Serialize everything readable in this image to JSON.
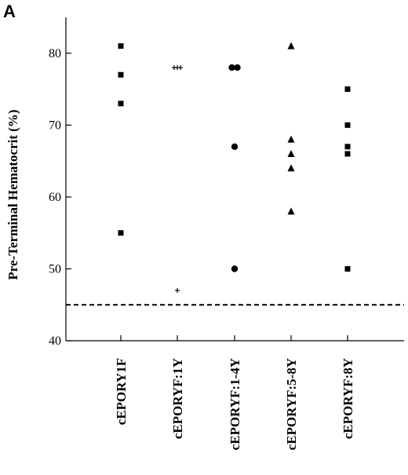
{
  "panel_label": "A",
  "chart_data": {
    "type": "scatter",
    "title": "",
    "xlabel": "",
    "ylabel": "Pre-Terminal Hematocrit (%)",
    "ylim": [
      40,
      85
    ],
    "yticks": [
      40,
      50,
      60,
      70,
      80
    ],
    "grid": false,
    "reference_line": {
      "y": 45,
      "style": "dashed"
    },
    "categories": [
      "cEPORY1F",
      "cEPORYF:1Y",
      "cEPORYF:1-4Y",
      "cEPORYF:5-8Y",
      "cEPORYF:8Y"
    ],
    "series": [
      {
        "category": "cEPORY1F",
        "marker": "square",
        "values": [
          81,
          77,
          73,
          55
        ]
      },
      {
        "category": "cEPORYF:1Y",
        "marker": "plus",
        "values": [
          78,
          78,
          78,
          47
        ]
      },
      {
        "category": "cEPORYF:1-4Y",
        "marker": "circle",
        "values": [
          78,
          78,
          67,
          50
        ]
      },
      {
        "category": "cEPORYF:5-8Y",
        "marker": "triangle",
        "values": [
          81,
          68,
          66,
          64,
          58
        ]
      },
      {
        "category": "cEPORYF:8Y",
        "marker": "square",
        "values": [
          75,
          70,
          67,
          66,
          50
        ]
      }
    ]
  }
}
